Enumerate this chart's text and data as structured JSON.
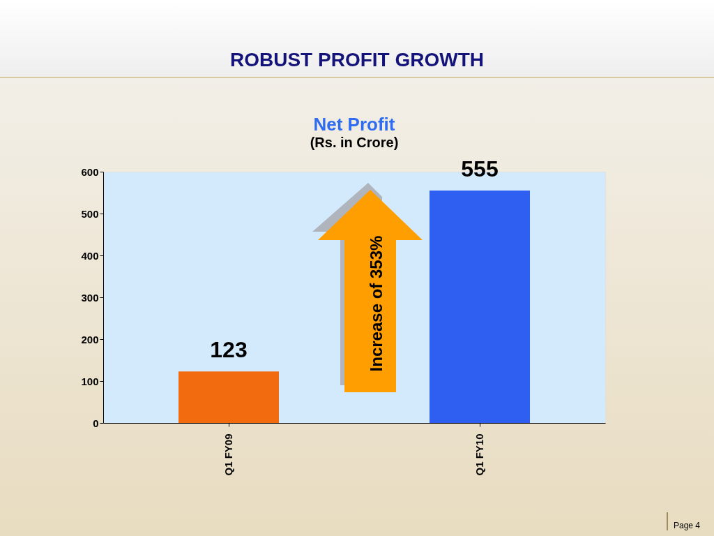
{
  "chart_data": {
    "type": "bar",
    "title": "ROBUST PROFIT GROWTH",
    "subtitle": "Net Profit",
    "annotations": [
      "(Rs. in Crore)",
      "Increase of 353%",
      "Page 4"
    ],
    "categories": [
      "Q1 FY09",
      "Q1 FY10"
    ],
    "values": [
      123,
      555
    ],
    "colors": [
      "#f26b0f",
      "#2f5ff0"
    ],
    "ylim": [
      0,
      600
    ],
    "yticks": [
      0,
      100,
      200,
      300,
      400,
      500,
      600
    ],
    "data_labels": true,
    "grid": false,
    "legend": false
  }
}
